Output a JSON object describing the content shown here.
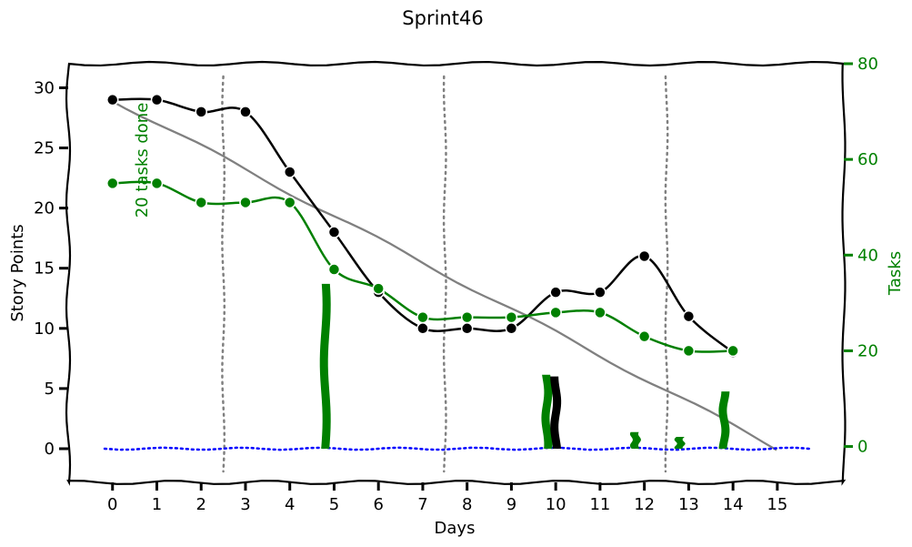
{
  "chart_data": {
    "type": "line",
    "title": "Sprint46",
    "xlabel": "Days",
    "ylabel": "Story Points",
    "y2label": "Tasks",
    "xlim": [
      -1,
      16.5
    ],
    "ylim": [
      -2.8,
      32
    ],
    "y2lim": [
      -7.5,
      80
    ],
    "x_ticks": [
      0,
      1,
      2,
      3,
      4,
      5,
      6,
      7,
      8,
      9,
      10,
      11,
      12,
      13,
      14,
      15
    ],
    "y_ticks": [
      0,
      5,
      10,
      15,
      20,
      25,
      30
    ],
    "y2_ticks": [
      0,
      20,
      40,
      60,
      80
    ],
    "sprint_boundaries": [
      2.5,
      7.5,
      12.5
    ],
    "annotation": "20 tasks done",
    "colors": {
      "story": "#000000",
      "tasks": "#008000",
      "ideal": "#808080",
      "zero": "#0000ff",
      "boundary": "#808080"
    },
    "series": [
      {
        "axis": "left",
        "color": "#000000",
        "x": [
          0,
          1,
          2,
          3,
          4,
          5,
          6,
          7,
          8,
          9,
          10,
          11,
          12,
          13,
          14
        ],
        "values": [
          29,
          29,
          28,
          28,
          23,
          18,
          13,
          10,
          10,
          10,
          13,
          13,
          16,
          11,
          8
        ]
      },
      {
        "axis": "right",
        "color": "#008000",
        "x": [
          0,
          1,
          2,
          3,
          4,
          5,
          6,
          7,
          8,
          9,
          10,
          11,
          12,
          13,
          14
        ],
        "values": [
          55,
          55,
          51,
          51,
          51,
          37,
          33,
          27,
          27,
          27,
          28,
          28,
          23,
          20,
          20
        ]
      },
      {
        "axis": "left",
        "color": "#808080",
        "x": [
          0,
          15
        ],
        "values": [
          29,
          0
        ]
      },
      {
        "axis": "left",
        "color": "#0000ff",
        "style": "dotted",
        "x": [
          -1,
          16.5
        ],
        "values": [
          0,
          0
        ]
      }
    ],
    "bars": [
      {
        "x": 4.8,
        "axis": "right",
        "value": 34,
        "color": "#008000"
      },
      {
        "x": 9.8,
        "axis": "right",
        "value": 15,
        "color": "#008000"
      },
      {
        "x": 10.0,
        "axis": "left",
        "value": 6,
        "color": "#000000"
      },
      {
        "x": 11.8,
        "axis": "right",
        "value": 3,
        "color": "#008000"
      },
      {
        "x": 12.8,
        "axis": "right",
        "value": 2,
        "color": "#008000"
      },
      {
        "x": 13.8,
        "axis": "right",
        "value": 11.5,
        "color": "#008000"
      }
    ]
  }
}
